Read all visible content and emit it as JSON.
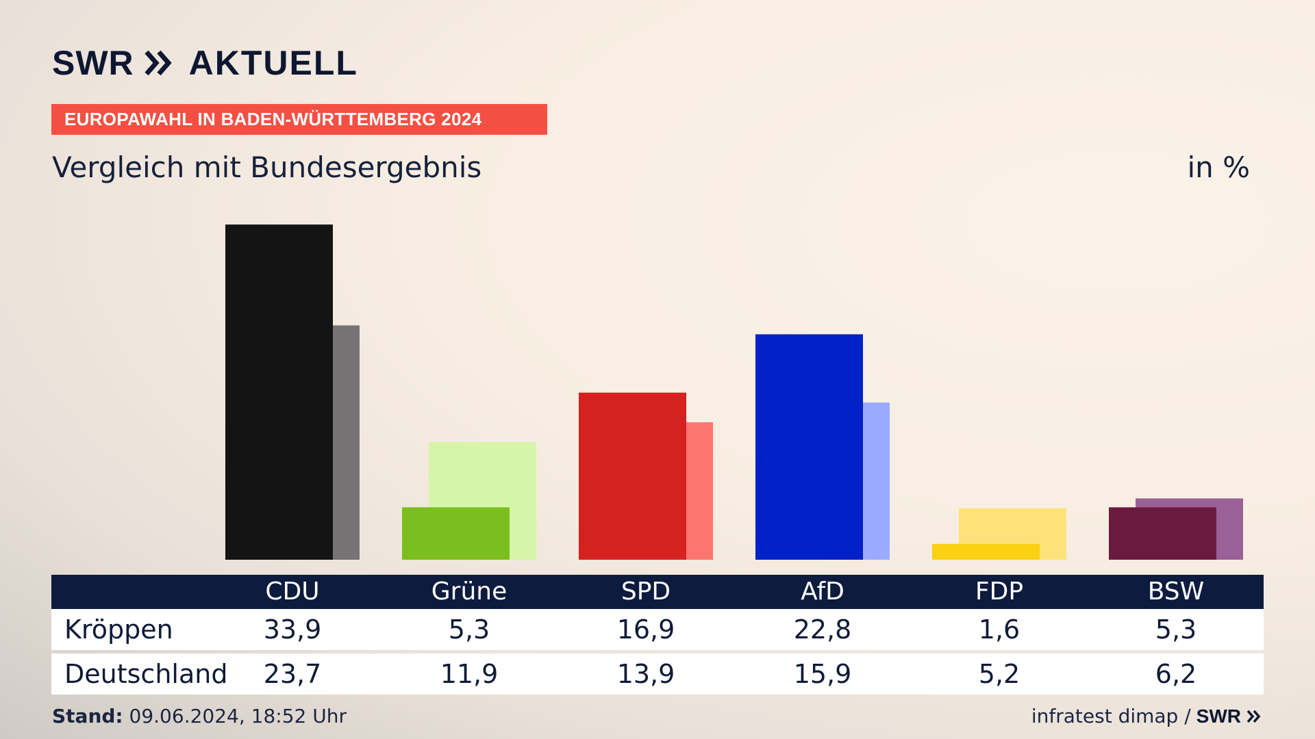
{
  "brand": {
    "logo_text": "SWR",
    "logo_suffix": "AKTUELL"
  },
  "banner": "EUROPAWAHL IN BADEN-WÜRTTEMBERG 2024",
  "subtitle": "Vergleich mit Bundesergebnis",
  "unit": "in %",
  "table": {
    "rows": [
      {
        "label": "Kröppen"
      },
      {
        "label": "Deutschland"
      }
    ]
  },
  "footer": {
    "stand_label": "Stand:",
    "stand_value": "09.06.2024, 18:52 Uhr",
    "source": "infratest dimap /",
    "source_logo": "SWR"
  },
  "chart_data": {
    "type": "bar",
    "categories": [
      "CDU",
      "Grüne",
      "SPD",
      "AfD",
      "FDP",
      "BSW"
    ],
    "series": [
      {
        "name": "Kröppen",
        "values": [
          33.9,
          5.3,
          16.9,
          22.8,
          1.6,
          5.3
        ],
        "labels": [
          "33,9",
          "5,3",
          "16,9",
          "22,8",
          "1,6",
          "5,3"
        ]
      },
      {
        "name": "Deutschland",
        "values": [
          23.7,
          11.9,
          13.9,
          15.9,
          5.2,
          6.2
        ],
        "labels": [
          "23,7",
          "11,9",
          "13,9",
          "15,9",
          "5,2",
          "6,2"
        ]
      }
    ],
    "colors": {
      "primary": [
        "#141414",
        "#7abf1d",
        "#d62121",
        "#0021c8",
        "#fbd113",
        "#6b1a3f"
      ],
      "secondary": [
        "#757373",
        "#d6f5a8",
        "#ff7570",
        "#9ba9ff",
        "#fde27a",
        "#9a6198"
      ]
    },
    "ylim": [
      0,
      34
    ],
    "grid": false
  }
}
